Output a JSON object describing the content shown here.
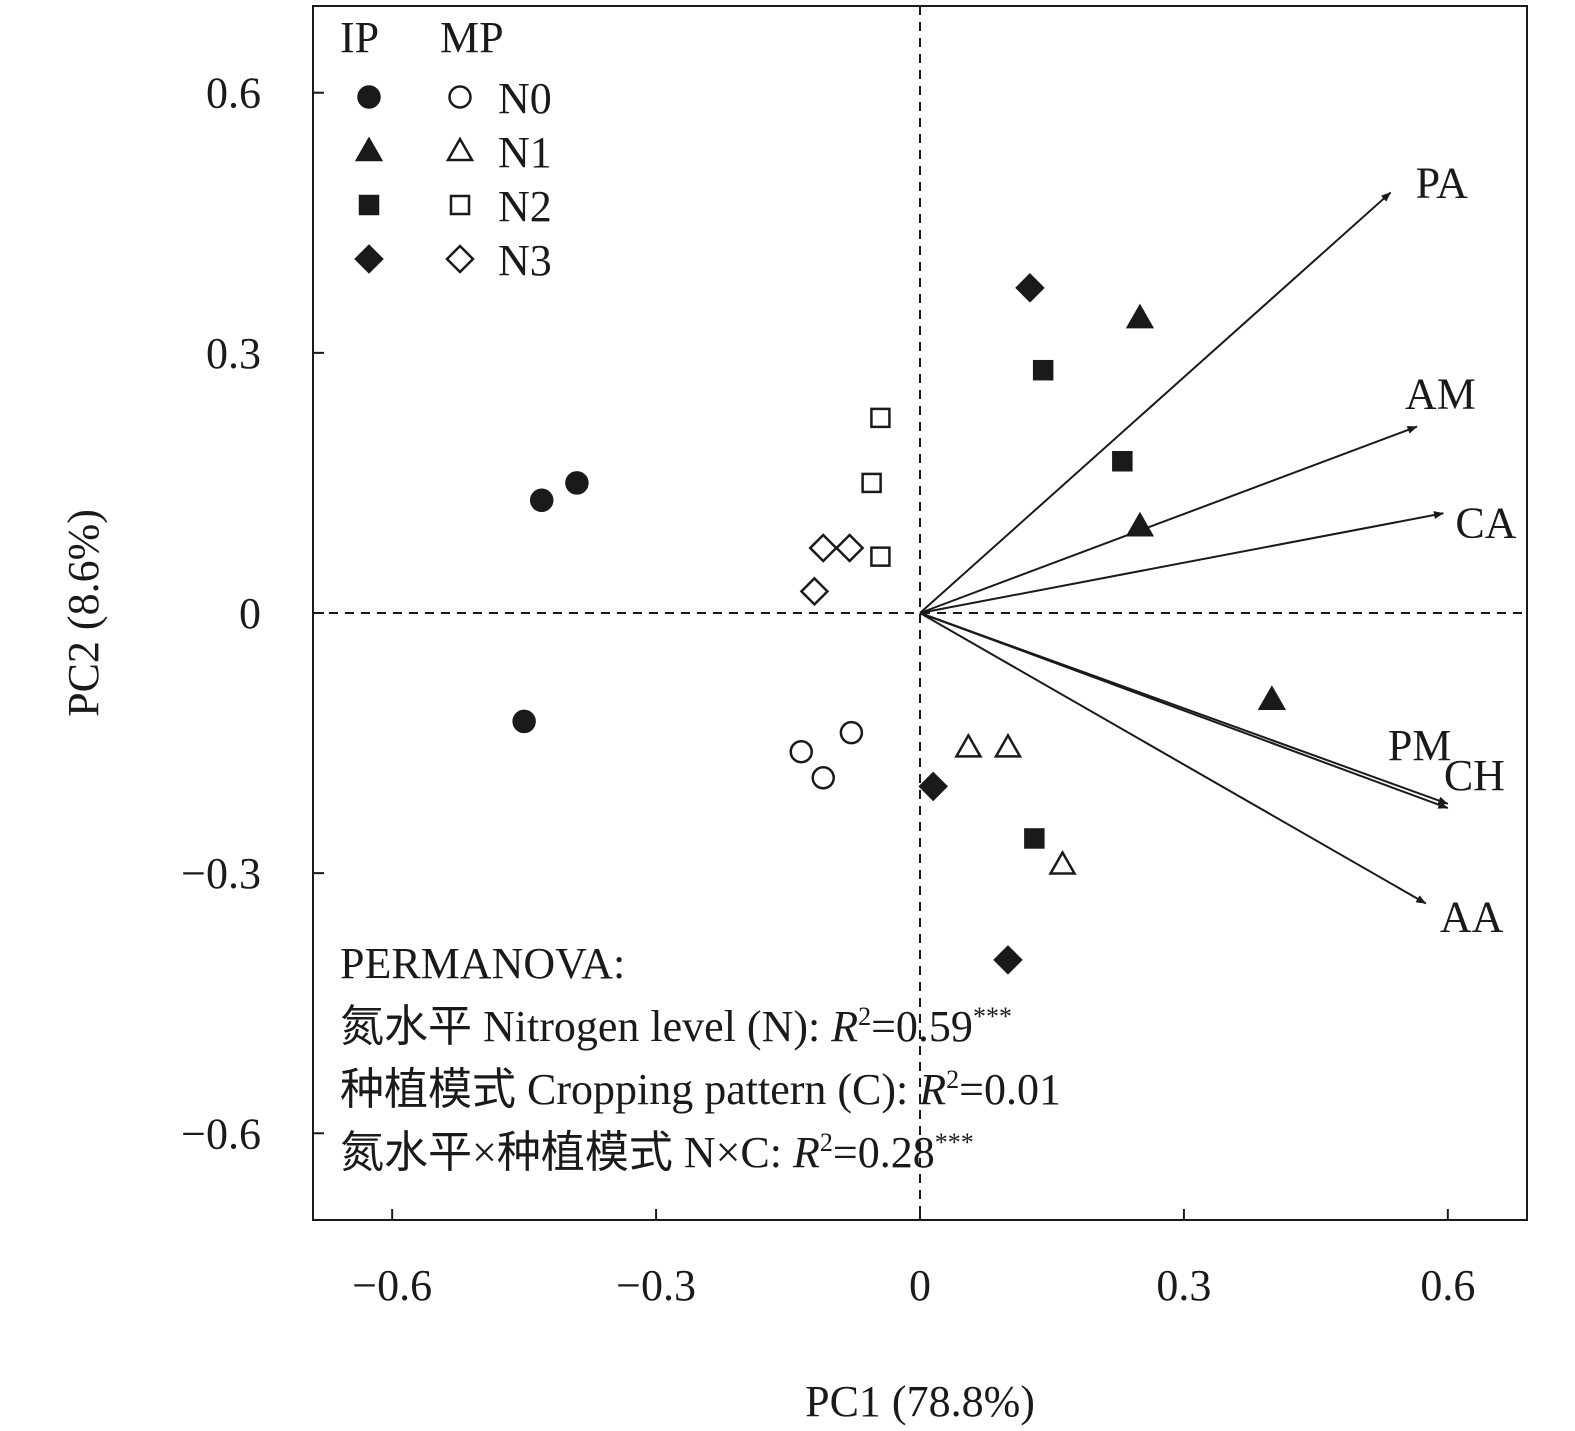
{
  "chart_data": {
    "type": "scatter",
    "subtype": "pca-biplot",
    "title": "",
    "xlabel": "PC1 (78.8%)",
    "ylabel": "PC2 (8.6%)",
    "xlim": [
      -0.69,
      0.69
    ],
    "ylim": [
      -0.7,
      0.7
    ],
    "x_ticks": [
      -0.6,
      -0.3,
      0,
      0.3,
      0.6
    ],
    "y_ticks": [
      0.6,
      0.3,
      0,
      -0.3,
      -0.6
    ],
    "x_tick_labels": [
      "−0.6",
      "−0.3",
      "0",
      "0.3",
      "0.6"
    ],
    "y_tick_labels": [
      "0.6",
      "0.3",
      "0",
      "−0.3",
      "−0.6"
    ],
    "grid": false,
    "reference_lines": "dashed lines at x = 0 and y = 0",
    "legend": {
      "placement": "top-left",
      "column_headers": [
        "IP",
        "MP"
      ],
      "fill_styles": {
        "IP": "filled",
        "MP": "open"
      },
      "rows": [
        {
          "label": "N0",
          "marker": "circle"
        },
        {
          "label": "N1",
          "marker": "triangle"
        },
        {
          "label": "N2",
          "marker": "square"
        },
        {
          "label": "N3",
          "marker": "diamond"
        }
      ]
    },
    "series": [
      {
        "group": "IP",
        "level": "N0",
        "marker": "circle",
        "filled": true,
        "points": [
          {
            "x": -0.43,
            "y": 0.13
          },
          {
            "x": -0.39,
            "y": 0.15
          },
          {
            "x": -0.45,
            "y": -0.125
          }
        ]
      },
      {
        "group": "IP",
        "level": "N1",
        "marker": "triangle",
        "filled": true,
        "points": [
          {
            "x": 0.25,
            "y": 0.34
          },
          {
            "x": 0.25,
            "y": 0.1
          },
          {
            "x": 0.4,
            "y": -0.1
          }
        ]
      },
      {
        "group": "IP",
        "level": "N2",
        "marker": "square",
        "filled": true,
        "points": [
          {
            "x": 0.14,
            "y": 0.28
          },
          {
            "x": 0.23,
            "y": 0.175
          },
          {
            "x": 0.13,
            "y": -0.26
          }
        ]
      },
      {
        "group": "IP",
        "level": "N3",
        "marker": "diamond",
        "filled": true,
        "points": [
          {
            "x": 0.125,
            "y": 0.375
          },
          {
            "x": 0.015,
            "y": -0.2
          },
          {
            "x": 0.1,
            "y": -0.4
          }
        ]
      },
      {
        "group": "MP",
        "level": "N0",
        "marker": "circle",
        "filled": false,
        "points": [
          {
            "x": -0.135,
            "y": -0.16
          },
          {
            "x": -0.11,
            "y": -0.19
          },
          {
            "x": -0.078,
            "y": -0.138
          }
        ]
      },
      {
        "group": "MP",
        "level": "N1",
        "marker": "triangle",
        "filled": false,
        "points": [
          {
            "x": 0.055,
            "y": -0.155
          },
          {
            "x": 0.1,
            "y": -0.155
          },
          {
            "x": 0.162,
            "y": -0.29
          }
        ]
      },
      {
        "group": "MP",
        "level": "N2",
        "marker": "square",
        "filled": false,
        "points": [
          {
            "x": -0.045,
            "y": 0.225
          },
          {
            "x": -0.055,
            "y": 0.15
          },
          {
            "x": -0.045,
            "y": 0.065
          }
        ]
      },
      {
        "group": "MP",
        "level": "N3",
        "marker": "diamond",
        "filled": false,
        "points": [
          {
            "x": -0.11,
            "y": 0.075
          },
          {
            "x": -0.08,
            "y": 0.075
          },
          {
            "x": -0.12,
            "y": 0.025
          }
        ]
      }
    ],
    "loadings": [
      {
        "name": "PA",
        "x": 0.535,
        "y": 0.485
      },
      {
        "name": "AM",
        "x": 0.565,
        "y": 0.215
      },
      {
        "name": "CA",
        "x": 0.595,
        "y": 0.115
      },
      {
        "name": "CH",
        "x": 0.6,
        "y": -0.22
      },
      {
        "name": "PM",
        "x": 0.6,
        "y": -0.225
      },
      {
        "name": "AA",
        "x": 0.575,
        "y": -0.335
      }
    ],
    "annotations": [
      "PERMANOVA:",
      "氮水平 Nitrogen level (N): R²=0.59***",
      "种植模式 Cropping pattern (C): R²=0.01",
      "氮水平×种植模式 N×C: R²=0.28***"
    ]
  },
  "permanova": {
    "header": "PERMANOVA:",
    "lines": [
      {
        "prefix": "氮水平 Nitrogen level (N): ",
        "r": "R",
        "sup": "2",
        "value": "=0.59",
        "stars": "***"
      },
      {
        "prefix": "种植模式 Cropping pattern (C): ",
        "r": "R",
        "sup": "2",
        "value": "=0.01",
        "stars": ""
      },
      {
        "prefix": "氮水平×种植模式 N×C: ",
        "r": "R",
        "sup": "2",
        "value": "=0.28",
        "stars": "***"
      }
    ]
  },
  "colors": {
    "ink": "#1a1a1a",
    "background": "#ffffff"
  }
}
